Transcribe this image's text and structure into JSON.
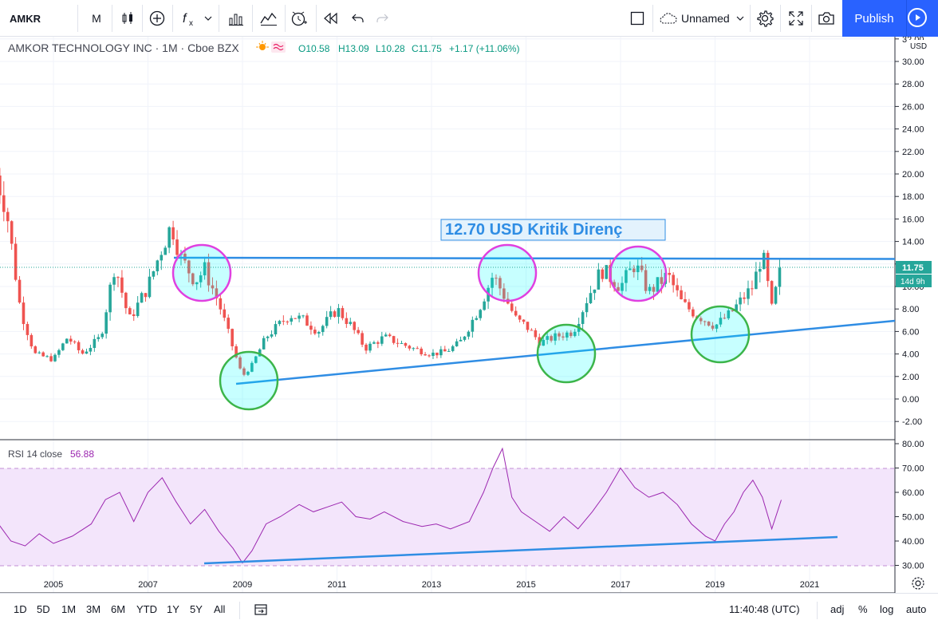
{
  "toolbar": {
    "symbol": "AMKR",
    "interval": "M",
    "layout_name": "Unnamed",
    "publish_label": "Publish",
    "icons": [
      "candles-icon",
      "add-icon",
      "indicators-icon",
      "templates-icon",
      "compare-icon",
      "alert-icon",
      "replay-icon",
      "undo-icon",
      "redo-icon",
      "square-icon",
      "cloud-icon",
      "gear-icon",
      "fullscreen-icon",
      "camera-icon",
      "play-icon"
    ]
  },
  "legend": {
    "title": "AMKOR TECHNOLOGY INC · 1M · Cboe BZX",
    "ohlc": {
      "o": "O10.58",
      "h": "H13.09",
      "l": "L10.28",
      "c": "C11.75",
      "chg": "+1.17 (+11.06%)"
    }
  },
  "annotation": {
    "text": "12.70 USD Kritik Direnç"
  },
  "price_axis": {
    "unit": "USD",
    "ticks": [
      "32.00",
      "30.00",
      "28.00",
      "26.00",
      "24.00",
      "22.00",
      "20.00",
      "18.00",
      "16.00",
      "14.00",
      "12.00",
      "10.00",
      "8.00",
      "6.00",
      "4.00",
      "2.00",
      "0.00",
      "-2.00"
    ],
    "last_price": "11.75",
    "countdown": "14d 9h"
  },
  "rsi": {
    "label": "RSI 14 close",
    "value": "56.88",
    "ticks": [
      "80.00",
      "70.00",
      "60.00",
      "50.00",
      "40.00",
      "30.00"
    ]
  },
  "time_axis": {
    "ticks": [
      "2005",
      "2007",
      "2009",
      "2011",
      "2013",
      "2015",
      "2017",
      "2019",
      "2021"
    ]
  },
  "bottombar": {
    "ranges": [
      "1D",
      "5D",
      "1M",
      "3M",
      "6M",
      "YTD",
      "1Y",
      "5Y",
      "All"
    ],
    "clock": "11:40:48 (UTC)",
    "right": [
      "adj",
      "%",
      "log",
      "auto"
    ]
  },
  "colors": {
    "up": "#26a69a",
    "down": "#ef5350",
    "trend": "#2f8de4",
    "magenta": "#e040e0",
    "green": "#3cb54a",
    "rsi": "#9c27b0",
    "rsiBand": "#f3e5fb",
    "publish": "#2962ff"
  },
  "chart_data": [
    {
      "type": "line",
      "title": "AMKOR TECHNOLOGY INC · 1M · Cboe BZX",
      "ylabel": "USD",
      "ylim": [
        -2.5,
        32.5
      ],
      "x": [
        2003.7,
        2004.0,
        2004.3,
        2004.6,
        2005.0,
        2005.3,
        2005.6,
        2006.0,
        2006.3,
        2006.6,
        2007.0,
        2007.3,
        2007.5,
        2007.7,
        2008.0,
        2008.2,
        2008.5,
        2008.8,
        2009.0,
        2009.2,
        2009.5,
        2010.0,
        2010.3,
        2010.6,
        2011.0,
        2011.3,
        2011.6,
        2012.0,
        2012.3,
        2012.6,
        2013.0,
        2013.3,
        2013.6,
        2014.0,
        2014.3,
        2014.5,
        2014.8,
        2015.0,
        2015.3,
        2015.6,
        2016.0,
        2016.3,
        2016.6,
        2017.0,
        2017.3,
        2017.6,
        2018.0,
        2018.3,
        2018.6,
        2019.0,
        2019.3,
        2019.6,
        2019.8,
        2020.0,
        2020.2,
        2020.4
      ],
      "series": [
        {
          "values": [
            21.0,
            17.0,
            8.0,
            4.0,
            3.5,
            5.5,
            4.0,
            5.5,
            12.0,
            7.0,
            10.0,
            13.5,
            15.5,
            12.5,
            10.5,
            11.5,
            8.5,
            4.5,
            2.0,
            3.0,
            5.5,
            7.5,
            7.0,
            6.0,
            8.0,
            6.5,
            4.5,
            5.5,
            5.0,
            4.5,
            4.0,
            4.2,
            5.0,
            8.0,
            11.0,
            9.5,
            7.0,
            6.5,
            5.0,
            5.5,
            6.0,
            9.0,
            11.5,
            10.0,
            12.0,
            9.5,
            11.0,
            8.5,
            7.5,
            6.5,
            7.5,
            9.0,
            10.0,
            13.0,
            8.0,
            11.75
          ]
        }
      ]
    },
    {
      "type": "line",
      "title": "RSI 14 close",
      "ylim": [
        25,
        82
      ],
      "x": [
        2003.5,
        2003.8,
        2004.1,
        2004.4,
        2004.7,
        2005.0,
        2005.4,
        2005.8,
        2006.1,
        2006.4,
        2006.7,
        2007.0,
        2007.3,
        2007.6,
        2007.9,
        2008.2,
        2008.5,
        2008.8,
        2009.0,
        2009.2,
        2009.5,
        2009.8,
        2010.2,
        2010.5,
        2010.8,
        2011.1,
        2011.4,
        2011.7,
        2012.0,
        2012.4,
        2012.8,
        2013.1,
        2013.4,
        2013.8,
        2014.1,
        2014.3,
        2014.5,
        2014.7,
        2014.9,
        2015.2,
        2015.5,
        2015.8,
        2016.1,
        2016.4,
        2016.7,
        2017.0,
        2017.3,
        2017.6,
        2017.9,
        2018.2,
        2018.5,
        2018.8,
        2019.0,
        2019.2,
        2019.4,
        2019.6,
        2019.8,
        2020.0,
        2020.2,
        2020.4
      ],
      "series": [
        {
          "name": "RSI 14 close",
          "values": [
            56,
            48,
            40,
            38,
            43,
            39,
            42,
            47,
            57,
            60,
            48,
            60,
            66,
            56,
            47,
            53,
            44,
            37,
            31,
            36,
            47,
            50,
            55,
            52,
            54,
            56,
            50,
            49,
            52,
            48,
            46,
            47,
            45,
            48,
            60,
            70,
            78,
            58,
            52,
            48,
            44,
            50,
            45,
            52,
            60,
            70,
            62,
            58,
            60,
            55,
            47,
            42,
            40,
            47,
            52,
            60,
            65,
            58,
            45,
            56.88
          ]
        }
      ]
    }
  ]
}
